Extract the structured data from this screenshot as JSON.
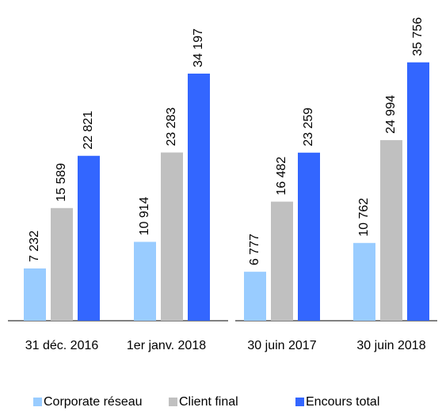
{
  "chart_data": {
    "type": "bar",
    "categories": [
      "31 déc. 2016",
      "1er janv. 2018",
      "30 juin 2017",
      "30 juin 2018"
    ],
    "series": [
      {
        "name": "Corporate réseau",
        "color": "#99ccff",
        "values": [
          7232,
          10914,
          6777,
          10762
        ],
        "value_labels": [
          "7 232",
          "10 914",
          "6 777",
          "10 762"
        ]
      },
      {
        "name": "Client final",
        "color": "#c0c0c0",
        "values": [
          15589,
          23283,
          16482,
          24994
        ],
        "value_labels": [
          "15 589",
          "23 283",
          "16 482",
          "24 994"
        ]
      },
      {
        "name": "Encours total",
        "color": "#3366ff",
        "values": [
          22821,
          34197,
          23259,
          35756
        ],
        "value_labels": [
          "22 821",
          "34 197",
          "23 259",
          "35 756"
        ]
      }
    ],
    "ylim": [
      0,
      40000
    ],
    "grid": false,
    "legend": "bottom"
  }
}
